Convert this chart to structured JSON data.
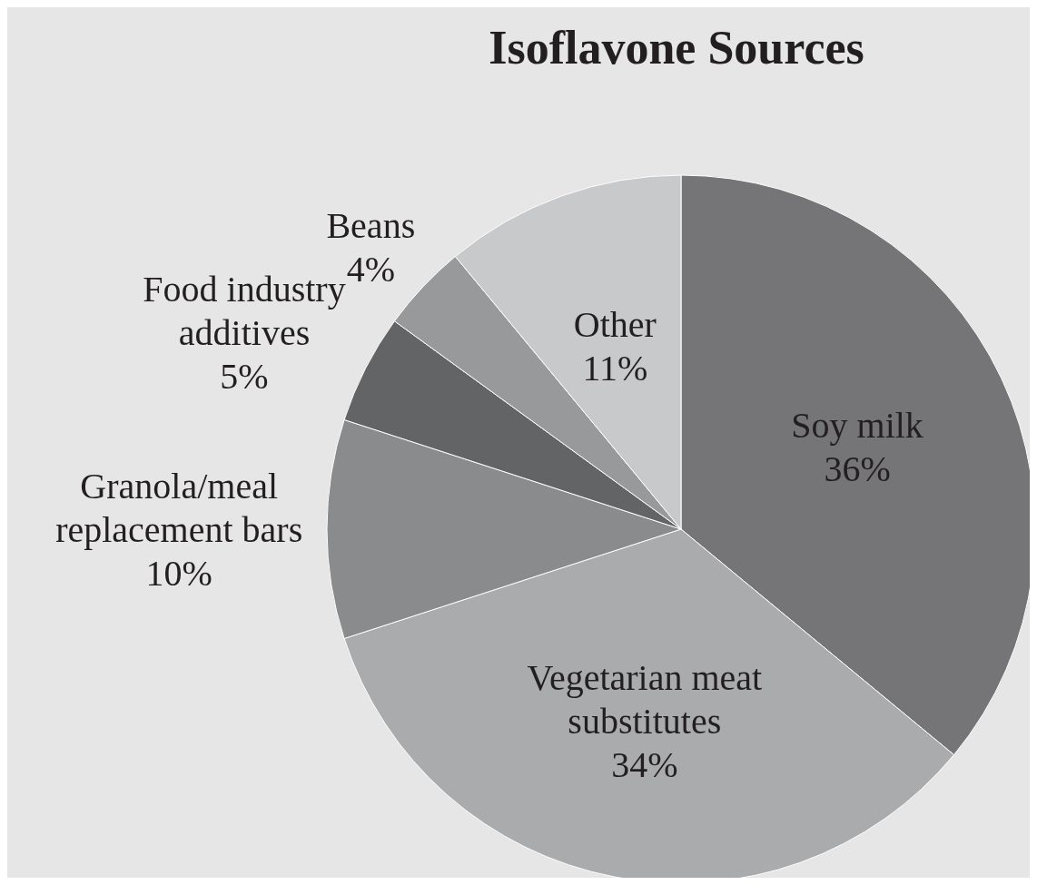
{
  "chart_data": {
    "type": "pie",
    "title": "Isoflavone Sources",
    "categories": [
      "Soy milk",
      "Vegetarian meat substitutes",
      "Granola/meal replacement bars",
      "Food industry additives",
      "Beans",
      "Other"
    ],
    "values": [
      36,
      34,
      10,
      5,
      4,
      11
    ],
    "value_labels": [
      "36%",
      "34%",
      "10%",
      "5%",
      "4%",
      "11%"
    ],
    "colors": [
      "#757577",
      "#aaabad",
      "#8a8b8d",
      "#636466",
      "#98999b",
      "#c8c9cb"
    ]
  }
}
